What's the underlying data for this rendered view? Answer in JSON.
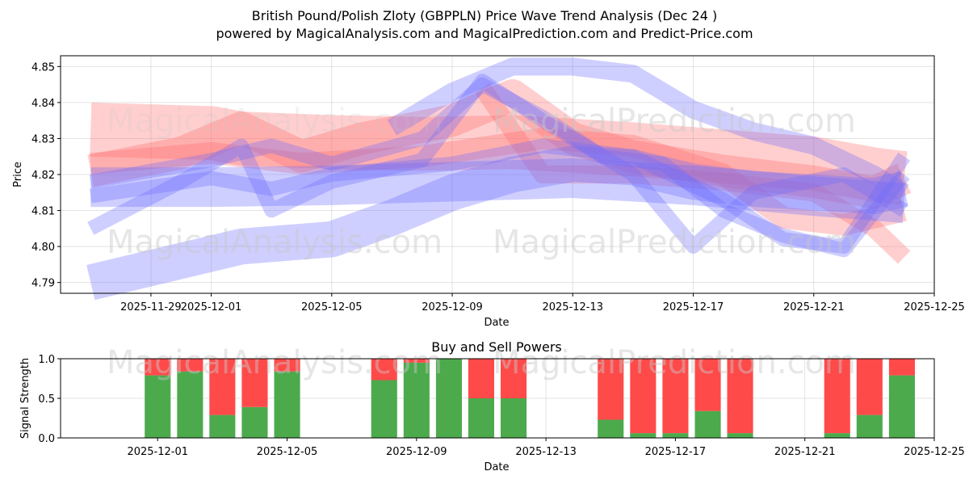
{
  "title_line1": "British Pound/Polish Zloty (GBPPLN) Price Wave Trend Analysis (Dec 24 )",
  "title_line2": "powered by MagicalAnalysis.com and MagicalPrediction.com and Predict-Price.com",
  "watermarks": [
    "MagicalAnalysis.com",
    "MagicalPrediction.com"
  ],
  "colors": {
    "red": "#ff6b6b",
    "blue": "#6b6bff",
    "buy": "#4caa4c",
    "sell": "#ff4a4a"
  },
  "chart_data": [
    {
      "type": "line",
      "title": "",
      "xlabel": "Date",
      "ylabel": "Price",
      "xlim": [
        "2025-11-26",
        "2025-12-25"
      ],
      "ylim": [
        4.787,
        4.853
      ],
      "yticks": [
        4.79,
        4.8,
        4.81,
        4.82,
        4.83,
        4.84,
        4.85
      ],
      "xtick_labels": [
        "2025-11-29",
        "2025-12-01",
        "2025-12-05",
        "2025-12-09",
        "2025-12-13",
        "2025-12-17",
        "2025-12-21",
        "2025-12-25"
      ],
      "grid": true,
      "series": [
        {
          "name": "red-band-1",
          "color": "red",
          "width": 0.015,
          "x": [
            "2025-11-27",
            "2025-12-01",
            "2025-12-02",
            "2025-12-05",
            "2025-12-08",
            "2025-12-11",
            "2025-12-15",
            "2025-12-18",
            "2025-12-21",
            "2025-12-23",
            "2025-12-24"
          ],
          "y": [
            4.8325,
            4.8315,
            4.83,
            4.829,
            4.8285,
            4.829,
            4.827,
            4.825,
            4.823,
            4.82,
            4.819
          ]
        },
        {
          "name": "red-band-2",
          "color": "red",
          "width": 0.009,
          "x": [
            "2025-11-27",
            "2025-11-30",
            "2025-12-02",
            "2025-12-04",
            "2025-12-06",
            "2025-12-09",
            "2025-12-11",
            "2025-12-13",
            "2025-12-15",
            "2025-12-18",
            "2025-12-21",
            "2025-12-23",
            "2025-12-24"
          ],
          "y": [
            4.821,
            4.826,
            4.833,
            4.825,
            4.83,
            4.835,
            4.842,
            4.83,
            4.825,
            4.821,
            4.818,
            4.815,
            4.819
          ]
        },
        {
          "name": "red-band-3",
          "color": "red",
          "width": 0.006,
          "x": [
            "2025-11-27",
            "2025-12-01",
            "2025-12-04",
            "2025-12-08",
            "2025-12-12",
            "2025-12-15",
            "2025-12-18",
            "2025-12-20",
            "2025-12-22",
            "2025-12-24"
          ],
          "y": [
            4.823,
            4.826,
            4.823,
            4.825,
            4.83,
            4.828,
            4.82,
            4.808,
            4.806,
            4.81
          ]
        },
        {
          "name": "red-band-4",
          "color": "red",
          "width": 0.005,
          "x": [
            "2025-12-10",
            "2025-12-12",
            "2025-12-15",
            "2025-12-18",
            "2025-12-21",
            "2025-12-23",
            "2025-12-24"
          ],
          "y": [
            4.844,
            4.82,
            4.82,
            4.818,
            4.815,
            4.805,
            4.797
          ]
        },
        {
          "name": "blue-band-1",
          "color": "blue",
          "width": 0.011,
          "x": [
            "2025-11-27",
            "2025-12-01",
            "2025-12-05",
            "2025-12-09",
            "2025-12-13",
            "2025-12-17",
            "2025-12-21",
            "2025-12-24"
          ],
          "y": [
            4.8165,
            4.8165,
            4.817,
            4.818,
            4.819,
            4.817,
            4.814,
            4.812
          ]
        },
        {
          "name": "blue-band-2",
          "color": "blue",
          "width": 0.01,
          "x": [
            "2025-11-27",
            "2025-11-30",
            "2025-12-02",
            "2025-12-05",
            "2025-12-07",
            "2025-12-09",
            "2025-12-11",
            "2025-12-13",
            "2025-12-15",
            "2025-12-17",
            "2025-12-19",
            "2025-12-21",
            "2025-12-23",
            "2025-12-24"
          ],
          "y": [
            4.79,
            4.796,
            4.8,
            4.802,
            4.808,
            4.815,
            4.82,
            4.823,
            4.822,
            4.818,
            4.816,
            4.815,
            4.814,
            4.816
          ]
        },
        {
          "name": "blue-band-3",
          "color": "blue",
          "width": 0.004,
          "x": [
            "2025-11-27",
            "2025-12-01",
            "2025-12-03",
            "2025-12-05",
            "2025-12-08",
            "2025-12-10",
            "2025-12-12",
            "2025-12-14",
            "2025-12-16",
            "2025-12-18",
            "2025-12-20",
            "2025-12-22",
            "2025-12-24"
          ],
          "y": [
            4.818,
            4.824,
            4.828,
            4.823,
            4.83,
            4.845,
            4.836,
            4.825,
            4.823,
            4.81,
            4.803,
            4.799,
            4.82
          ]
        },
        {
          "name": "blue-band-4",
          "color": "blue",
          "width": 0.005,
          "x": [
            "2025-12-07",
            "2025-12-09",
            "2025-12-11",
            "2025-12-13",
            "2025-12-15",
            "2025-12-17",
            "2025-12-19",
            "2025-12-21",
            "2025-12-23",
            "2025-12-24"
          ],
          "y": [
            4.833,
            4.843,
            4.85,
            4.85,
            4.848,
            4.838,
            4.832,
            4.828,
            4.82,
            4.815
          ]
        },
        {
          "name": "blue-band-5",
          "color": "blue",
          "width": 0.004,
          "x": [
            "2025-11-27",
            "2025-11-30",
            "2025-12-02",
            "2025-12-03",
            "2025-12-05",
            "2025-12-08",
            "2025-12-10",
            "2025-12-12",
            "2025-12-15",
            "2025-12-17",
            "2025-12-19",
            "2025-12-22",
            "2025-12-24"
          ],
          "y": [
            4.805,
            4.818,
            4.828,
            4.81,
            4.818,
            4.824,
            4.846,
            4.835,
            4.82,
            4.8,
            4.815,
            4.82,
            4.81
          ]
        },
        {
          "name": "blue-band-6",
          "color": "blue",
          "width": 0.004,
          "x": [
            "2025-11-27",
            "2025-12-01",
            "2025-12-03",
            "2025-12-05",
            "2025-12-09",
            "2025-12-12",
            "2025-12-15",
            "2025-12-18",
            "2025-12-20",
            "2025-12-22",
            "2025-12-24"
          ],
          "y": [
            4.814,
            4.819,
            4.816,
            4.82,
            4.823,
            4.828,
            4.825,
            4.813,
            4.802,
            4.8,
            4.825
          ]
        }
      ]
    },
    {
      "type": "bar",
      "title": "Buy and Sell Powers",
      "xlabel": "Date",
      "ylabel": "Signal Strength",
      "ylim": [
        0,
        1.0
      ],
      "yticks": [
        0.0,
        0.5,
        1.0
      ],
      "xtick_labels": [
        "2025-12-01",
        "2025-12-05",
        "2025-12-09",
        "2025-12-13",
        "2025-12-17",
        "2025-12-21",
        "2025-12-25"
      ],
      "xlim": [
        "2025-11-28",
        "2025-12-25"
      ],
      "grid": true,
      "dates": [
        "2025-12-01",
        "2025-12-02",
        "2025-12-03",
        "2025-12-04",
        "2025-12-05",
        "2025-12-08",
        "2025-12-09",
        "2025-12-10",
        "2025-12-11",
        "2025-12-12",
        "2025-12-15",
        "2025-12-16",
        "2025-12-17",
        "2025-12-18",
        "2025-12-19",
        "2025-12-22",
        "2025-12-23",
        "2025-12-24"
      ],
      "series": [
        {
          "name": "Buy Power",
          "color": "buy",
          "values": [
            0.79,
            0.84,
            0.29,
            0.39,
            0.84,
            0.73,
            0.95,
            1.0,
            0.5,
            0.5,
            0.23,
            0.06,
            0.06,
            0.34,
            0.06,
            0.06,
            0.29,
            0.79
          ]
        },
        {
          "name": "Sell Power",
          "color": "sell",
          "values": [
            0.21,
            0.16,
            0.71,
            0.61,
            0.16,
            0.27,
            0.05,
            0.0,
            0.5,
            0.5,
            0.77,
            0.94,
            0.94,
            0.66,
            0.94,
            0.94,
            0.71,
            0.21
          ]
        }
      ]
    }
  ]
}
